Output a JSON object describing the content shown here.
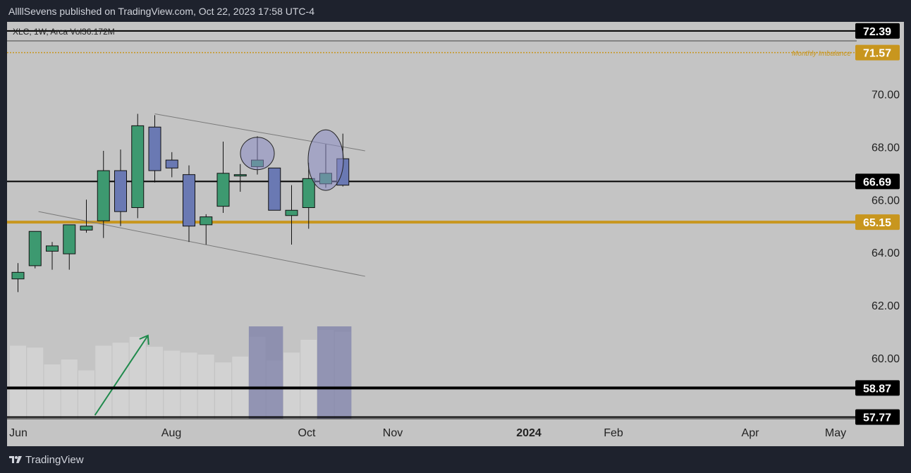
{
  "header": {
    "published_text": "AllllSevens published on TradingView.com, Oct 22, 2023 17:58 UTC-4"
  },
  "footer": {
    "brand": "TradingView"
  },
  "colors": {
    "bull": "#3d9970",
    "bear": "#6a79b3",
    "gold": "#c8961e",
    "frame_bg": "#c4c4c4",
    "page_bg": "#1e222d"
  },
  "chart_data": {
    "type": "candlestick",
    "symbol_info": "XLC, 1W, Arca  Vol36.172M",
    "timeframe": "1W",
    "ylim": [
      57.6,
      72.6
    ],
    "y_ticks": [
      "70.00",
      "68.00",
      "66.00",
      "64.00",
      "62.00",
      "60.00"
    ],
    "x_ticks": [
      {
        "label": "Jun",
        "bold": false
      },
      {
        "label": "Aug",
        "bold": false
      },
      {
        "label": "Oct",
        "bold": false
      },
      {
        "label": "Nov",
        "bold": false
      },
      {
        "label": "2024",
        "bold": true
      },
      {
        "label": "Feb",
        "bold": false
      },
      {
        "label": "Apr",
        "bold": false
      },
      {
        "label": "May",
        "bold": false
      }
    ],
    "candles": [
      {
        "o": 63.0,
        "h": 63.6,
        "l": 62.5,
        "c": 63.25
      },
      {
        "o": 63.5,
        "h": 64.8,
        "l": 63.4,
        "c": 64.8
      },
      {
        "o": 64.05,
        "h": 64.4,
        "l": 63.35,
        "c": 64.25
      },
      {
        "o": 63.95,
        "h": 65.0,
        "l": 63.35,
        "c": 65.05
      },
      {
        "o": 64.85,
        "h": 66.0,
        "l": 64.75,
        "c": 65.0
      },
      {
        "o": 65.2,
        "h": 67.85,
        "l": 64.55,
        "c": 67.1
      },
      {
        "o": 67.1,
        "h": 67.9,
        "l": 65.0,
        "c": 65.55
      },
      {
        "o": 65.7,
        "h": 69.25,
        "l": 65.3,
        "c": 68.8
      },
      {
        "o": 68.75,
        "h": 69.2,
        "l": 66.65,
        "c": 67.1
      },
      {
        "o": 67.5,
        "h": 67.8,
        "l": 66.85,
        "c": 67.2
      },
      {
        "o": 66.95,
        "h": 67.3,
        "l": 64.4,
        "c": 65.0
      },
      {
        "o": 65.05,
        "h": 65.45,
        "l": 64.3,
        "c": 65.35
      },
      {
        "o": 65.75,
        "h": 68.2,
        "l": 65.5,
        "c": 67.0
      },
      {
        "o": 66.95,
        "h": 67.35,
        "l": 66.3,
        "c": 66.95
      },
      {
        "o": 67.25,
        "h": 68.4,
        "l": 66.95,
        "c": 67.5
      },
      {
        "o": 67.2,
        "h": 67.2,
        "l": 65.6,
        "c": 65.6
      },
      {
        "o": 65.4,
        "h": 66.55,
        "l": 64.3,
        "c": 65.6
      },
      {
        "o": 65.7,
        "h": 67.4,
        "l": 64.9,
        "c": 66.8
      },
      {
        "o": 66.6,
        "h": 68.1,
        "l": 66.45,
        "c": 67.0
      },
      {
        "o": 67.55,
        "h": 68.5,
        "l": 66.5,
        "c": 66.55
      }
    ],
    "volume_relative": [
      0.74,
      0.72,
      0.55,
      0.6,
      0.49,
      0.74,
      0.77,
      0.83,
      0.73,
      0.69,
      0.67,
      0.65,
      0.57,
      0.63,
      0.83,
      0.59,
      0.67,
      0.8,
      0.9,
      0.88
    ],
    "price_labels": [
      {
        "value": 72.39,
        "text": "72.39",
        "color": "#000000"
      },
      {
        "value": 71.57,
        "text": "71.57",
        "color": "#c8961e"
      },
      {
        "value": 66.69,
        "text": "66.69",
        "color": "#000000"
      },
      {
        "value": 65.15,
        "text": "65.15",
        "color": "#c8961e"
      },
      {
        "value": 58.87,
        "text": "58.87",
        "color": "#000000"
      },
      {
        "value": 57.77,
        "text": "57.77",
        "color": "#000000"
      }
    ],
    "horizontal_lines": [
      {
        "value": 72.39,
        "color": "#000000",
        "width": 2
      },
      {
        "value": 71.57,
        "color": "#c8961e",
        "width": 1.5,
        "dashed": true
      },
      {
        "value": 66.69,
        "color": "#000000",
        "width": 2
      },
      {
        "value": 65.15,
        "color": "#c8961e",
        "width": 4
      },
      {
        "value": 58.87,
        "color": "#000000",
        "width": 4
      },
      {
        "value": 57.77,
        "color": "#000000",
        "width": 2
      }
    ],
    "annotations": {
      "monthly_imbalance": "Monthly Imbalance"
    },
    "trend_lines": [
      {
        "from_candle": 8,
        "from_value": 69.25,
        "to_candle": 20.3,
        "to_value": 67.85
      },
      {
        "from_candle": 1.2,
        "from_value": 65.55,
        "to_candle": 20.3,
        "to_value": 63.1
      }
    ],
    "highlight_ellipses": [
      {
        "candle": 14,
        "center_value": 67.75,
        "rx": 24,
        "ry": 23
      },
      {
        "candle": 18,
        "center_value": 67.5,
        "rx": 25,
        "ry": 43
      }
    ],
    "volume_highlights": [
      {
        "from_candle": 13.5,
        "to_candle": 15.5
      },
      {
        "from_candle": 17.5,
        "to_candle": 19.5
      }
    ]
  }
}
